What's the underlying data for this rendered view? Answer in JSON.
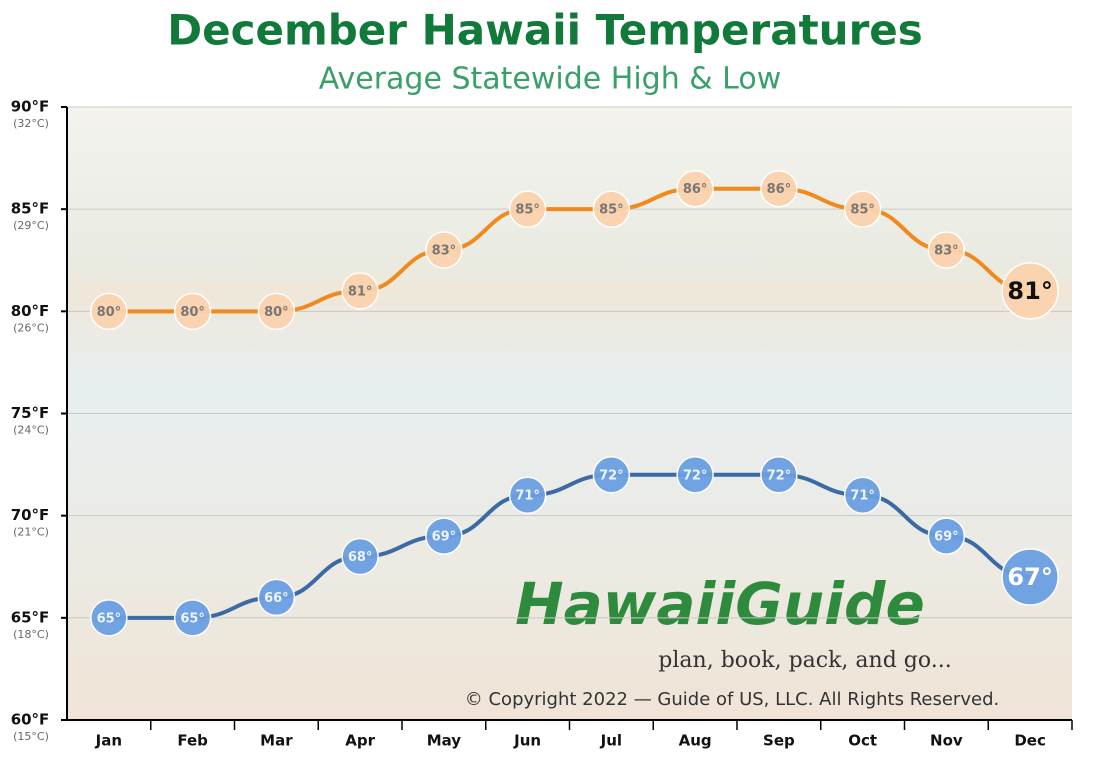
{
  "chart_data": {
    "type": "line",
    "title": "December Hawaii Temperatures",
    "subtitle": "Average Statewide High & Low",
    "categories": [
      "Jan",
      "Feb",
      "Mar",
      "Apr",
      "May",
      "Jun",
      "Jul",
      "Aug",
      "Sep",
      "Oct",
      "Nov",
      "Dec"
    ],
    "series": [
      {
        "name": "High",
        "color": "#f08a1c",
        "marker_color": "#fbd3ae",
        "values": [
          80,
          80,
          80,
          81,
          83,
          85,
          85,
          86,
          86,
          85,
          83,
          81
        ],
        "value_labels": [
          "80°",
          "80°",
          "80°",
          "81°",
          "83°",
          "85°",
          "85°",
          "86°",
          "86°",
          "85°",
          "83°",
          "81°"
        ]
      },
      {
        "name": "Low",
        "color": "#3c6aa5",
        "marker_color": "#6b9fe2",
        "values": [
          65,
          65,
          66,
          68,
          69,
          71,
          72,
          72,
          72,
          71,
          69,
          67
        ],
        "value_labels": [
          "65°",
          "65°",
          "66°",
          "68°",
          "69°",
          "71°",
          "72°",
          "72°",
          "72°",
          "71°",
          "69°",
          "67°"
        ]
      }
    ],
    "ylim": [
      60,
      90
    ],
    "yticks": [
      {
        "value": 60,
        "label": "60°F"
      },
      {
        "value": 65,
        "label": "65°F"
      },
      {
        "value": 70,
        "label": "70°F"
      },
      {
        "value": 75,
        "label": "75°F"
      },
      {
        "value": 80,
        "label": "80°F"
      },
      {
        "value": 85,
        "label": "85°F"
      },
      {
        "value": 90,
        "label": "90°F"
      }
    ],
    "yticks_celsius": [
      "(15°C)",
      "(18°C)",
      "(21°C)",
      "(24°C)",
      "(26°C)",
      "(29°C)",
      "(32°C)"
    ],
    "grid": true,
    "logo": {
      "brand": "HawaiiGuide",
      "tagline": "plan, book, pack, and go..."
    },
    "copyright": "© Copyright 2022 — Guide of US, LLC. All Rights Reserved."
  }
}
